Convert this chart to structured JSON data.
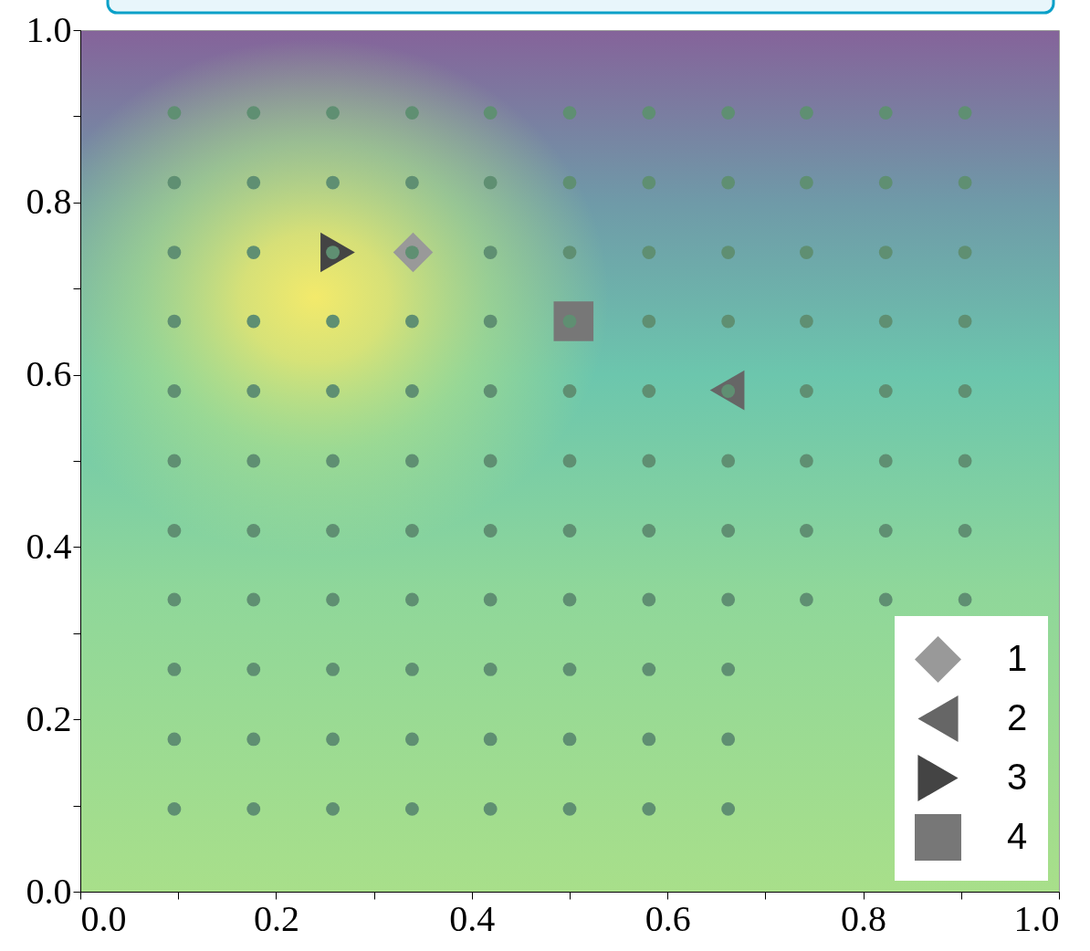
{
  "chart_data": {
    "type": "scatter",
    "xlim": [
      0,
      1
    ],
    "ylim": [
      0,
      1
    ],
    "xticks": [
      {
        "value": 0,
        "label": "0.0"
      },
      {
        "value": 0.1,
        "label": null
      },
      {
        "value": 0.2,
        "label": "0.2"
      },
      {
        "value": 0.3,
        "label": null
      },
      {
        "value": 0.4,
        "label": "0.4"
      },
      {
        "value": 0.5,
        "label": null
      },
      {
        "value": 0.6,
        "label": "0.6"
      },
      {
        "value": 0.7,
        "label": null
      },
      {
        "value": 0.8,
        "label": "0.8"
      },
      {
        "value": 0.9,
        "label": null
      },
      {
        "value": 1,
        "label": "1.0"
      }
    ],
    "yticks": [
      {
        "value": 0,
        "label": "0.0"
      },
      {
        "value": 0.1,
        "label": null
      },
      {
        "value": 0.2,
        "label": "0.2"
      },
      {
        "value": 0.3,
        "label": null
      },
      {
        "value": 0.4,
        "label": "0.4"
      },
      {
        "value": 0.5,
        "label": null
      },
      {
        "value": 0.6,
        "label": "0.6"
      },
      {
        "value": 0.7,
        "label": null
      },
      {
        "value": 0.8,
        "label": "0.8"
      },
      {
        "value": 0.9,
        "label": null
      },
      {
        "value": 1,
        "label": "1.0"
      }
    ],
    "grid": false,
    "legend": "bottom right",
    "series": [
      {
        "color": "#5f8f72",
        "marker": "circle",
        "x": [
          0.096,
          0.177,
          0.258,
          0.339,
          0.419,
          0.5,
          0.581,
          0.662,
          0.096,
          0.177,
          0.258,
          0.339,
          0.419,
          0.5,
          0.581,
          0.662,
          0.096,
          0.177,
          0.258,
          0.339,
          0.419,
          0.5,
          0.581,
          0.662,
          0.096,
          0.177,
          0.258,
          0.339,
          0.419,
          0.5,
          0.581,
          0.662,
          0.742,
          0.823,
          0.904,
          0.096,
          0.177,
          0.258,
          0.339,
          0.419,
          0.5,
          0.581,
          0.662,
          0.742,
          0.823,
          0.904,
          0.096,
          0.177,
          0.258,
          0.339,
          0.419,
          0.5,
          0.581,
          0.662,
          0.742,
          0.823,
          0.904,
          0.096,
          0.177,
          0.258,
          0.339,
          0.419,
          0.5,
          0.581,
          0.662,
          0.742,
          0.823,
          0.904,
          0.096,
          0.177,
          0.258,
          0.339,
          0.419,
          0.5,
          0.581,
          0.662,
          0.742,
          0.823,
          0.904,
          0.096,
          0.177,
          0.258,
          0.339,
          0.419,
          0.5,
          0.581,
          0.662,
          0.742,
          0.823,
          0.904,
          0.096,
          0.177,
          0.258,
          0.339,
          0.419,
          0.5,
          0.581,
          0.662,
          0.742,
          0.823,
          0.904,
          0.096,
          0.177,
          0.258,
          0.339,
          0.419,
          0.5,
          0.581,
          0.662,
          0.742,
          0.823,
          0.904
        ],
        "values": [
          0.096,
          0.096,
          0.096,
          0.096,
          0.096,
          0.096,
          0.096,
          0.096,
          0.177,
          0.177,
          0.177,
          0.177,
          0.177,
          0.177,
          0.177,
          0.177,
          0.258,
          0.258,
          0.258,
          0.258,
          0.258,
          0.258,
          0.258,
          0.258,
          0.339,
          0.339,
          0.339,
          0.339,
          0.339,
          0.339,
          0.339,
          0.339,
          0.339,
          0.339,
          0.339,
          0.419,
          0.419,
          0.419,
          0.419,
          0.419,
          0.419,
          0.419,
          0.419,
          0.419,
          0.419,
          0.419,
          0.5,
          0.5,
          0.5,
          0.5,
          0.5,
          0.5,
          0.5,
          0.5,
          0.5,
          0.5,
          0.5,
          0.581,
          0.581,
          0.581,
          0.581,
          0.581,
          0.581,
          0.581,
          0.581,
          0.581,
          0.581,
          0.581,
          0.662,
          0.662,
          0.662,
          0.662,
          0.662,
          0.662,
          0.662,
          0.662,
          0.662,
          0.662,
          0.662,
          0.742,
          0.742,
          0.742,
          0.742,
          0.742,
          0.742,
          0.742,
          0.742,
          0.742,
          0.742,
          0.742,
          0.823,
          0.823,
          0.823,
          0.823,
          0.823,
          0.823,
          0.823,
          0.823,
          0.823,
          0.823,
          0.823,
          0.904,
          0.904,
          0.904,
          0.904,
          0.904,
          0.904,
          0.904,
          0.904,
          0.904,
          0.904,
          0.904
        ]
      },
      {
        "name": "1",
        "color": "#999999",
        "marker": "diamond",
        "x": [
          0.34
        ],
        "values": [
          0.742
        ]
      },
      {
        "name": "2",
        "color": "#666666",
        "marker": "triangle-left",
        "x": [
          0.661
        ],
        "values": [
          0.582
        ]
      },
      {
        "name": "3",
        "color": "#444444",
        "marker": "triangle-right",
        "x": [
          0.263
        ],
        "values": [
          0.742
        ]
      },
      {
        "name": "4",
        "color": "#777777",
        "marker": "square",
        "x": [
          0.504
        ],
        "values": [
          0.662
        ]
      }
    ]
  }
}
